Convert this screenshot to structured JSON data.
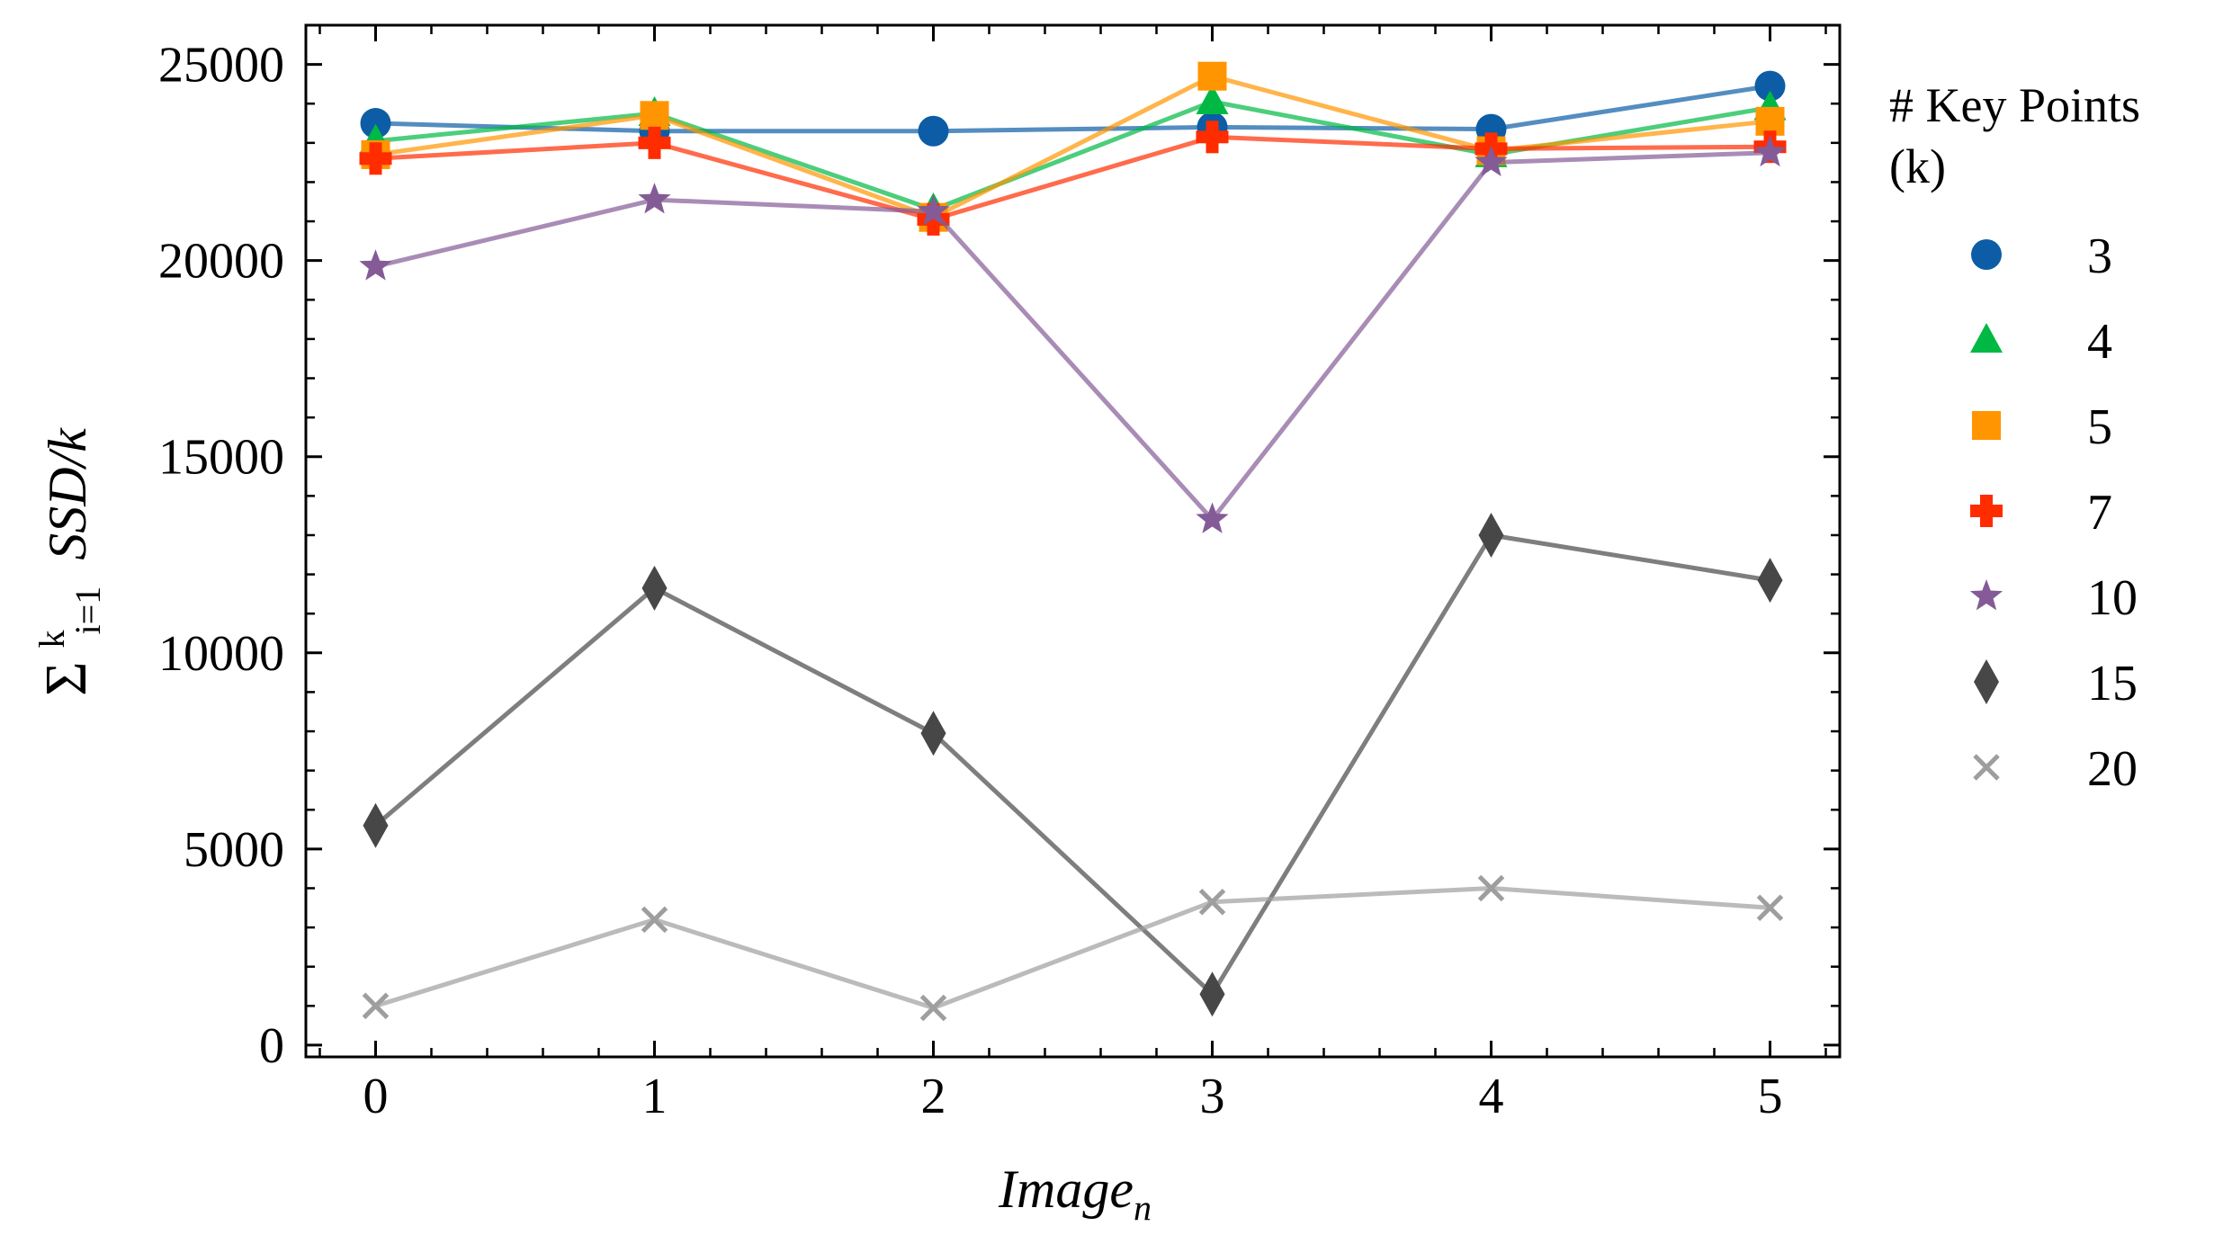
{
  "chart_data": {
    "type": "line",
    "xlabel": {
      "main": "Image",
      "sub": "n"
    },
    "ylabel": {
      "sigma": "Σ",
      "sup": "k",
      "sub": "i=1",
      "main": "SSD/k"
    },
    "x": [
      0,
      1,
      2,
      3,
      4,
      5
    ],
    "xticks": [
      "0",
      "1",
      "2",
      "3",
      "4",
      "5"
    ],
    "yticks": [
      "0",
      "5000",
      "10000",
      "15000",
      "20000",
      "25000"
    ],
    "xlim": [
      -0.25,
      5.25
    ],
    "ylim": [
      -300,
      26000
    ],
    "grid": false,
    "legend": {
      "title_line1": "# Key Points",
      "title_line2": "(k)",
      "placement": "outside-right"
    },
    "series": [
      {
        "name": "3",
        "color": "#0C5DA5",
        "marker": "circle",
        "values": [
          23500,
          23300,
          23300,
          23400,
          23350,
          24450
        ]
      },
      {
        "name": "4",
        "color": "#00B945",
        "marker": "triangle",
        "values": [
          23050,
          23750,
          21300,
          24050,
          22700,
          23900
        ]
      },
      {
        "name": "5",
        "color": "#FF9500",
        "marker": "square",
        "values": [
          22700,
          23700,
          21100,
          24700,
          22800,
          23550
        ]
      },
      {
        "name": "7",
        "color": "#FF2C00",
        "marker": "plus",
        "values": [
          22600,
          23000,
          21050,
          23150,
          22850,
          22900
        ]
      },
      {
        "name": "10",
        "color": "#845B97",
        "marker": "star",
        "values": [
          19850,
          21550,
          21250,
          13400,
          22500,
          22750
        ]
      },
      {
        "name": "15",
        "color": "#474747",
        "marker": "diamond",
        "values": [
          5600,
          11650,
          7950,
          1300,
          13000,
          11850
        ]
      },
      {
        "name": "20",
        "color": "#9E9E9E",
        "marker": "x",
        "values": [
          1000,
          3200,
          950,
          3650,
          4000,
          3500
        ]
      }
    ]
  }
}
